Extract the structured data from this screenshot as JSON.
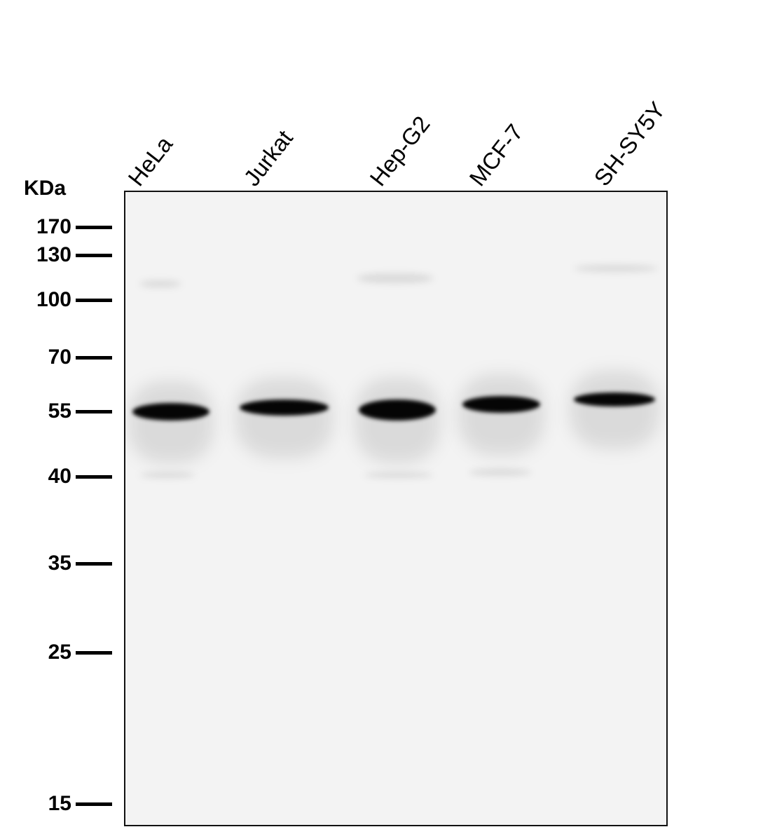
{
  "unit_label": "KDa",
  "lanes": [
    "HeLa",
    "Jurkat",
    "Hep-G2",
    "MCF-7",
    "SH-SY5Y"
  ],
  "markers": [
    "170",
    "130",
    "100",
    "70",
    "55",
    "40",
    "35",
    "25",
    "15"
  ],
  "band_color": "#000000",
  "background_color": "#f3f3f3"
}
